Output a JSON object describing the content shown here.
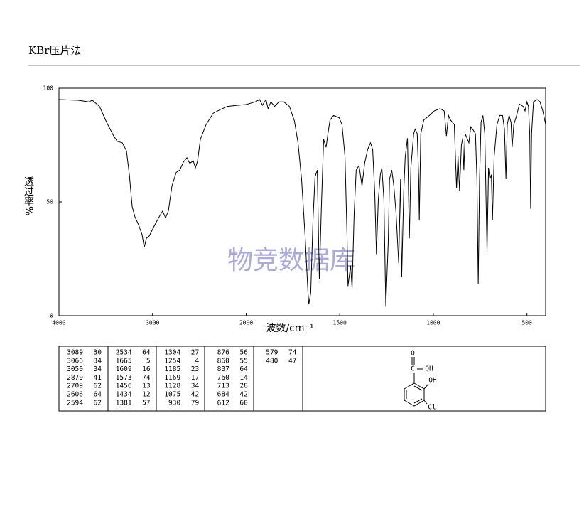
{
  "header": {
    "title": "KBr压片法"
  },
  "chart_data": {
    "type": "line",
    "x_label": "波数/cm⁻¹",
    "y_label": "透过率%",
    "color": "#000000",
    "xlim": [
      4000,
      400
    ],
    "xticks": [
      4000,
      3000,
      2000,
      1500,
      1000,
      500
    ],
    "x_scale_change": 2000,
    "ylim": [
      0,
      100
    ],
    "yticks": [
      0,
      50,
      100
    ],
    "grid": false,
    "x": [
      4000,
      3795,
      3681,
      3643,
      3567,
      3491,
      3415,
      3377,
      3324,
      3279,
      3248,
      3218,
      3188,
      3150,
      3112,
      3089,
      3066,
      3036,
      2975,
      2922,
      2892,
      2861,
      2831,
      2793,
      2747,
      2709,
      2671,
      2633,
      2603,
      2565,
      2542,
      2519,
      2489,
      2428,
      2352,
      2276,
      2200,
      2086,
      2000,
      1951,
      1928,
      1913,
      1894,
      1883,
      1868,
      1848,
      1825,
      1799,
      1769,
      1742,
      1723,
      1704,
      1685,
      1670,
      1665,
      1655,
      1643,
      1632,
      1620,
      1609,
      1598,
      1586,
      1573,
      1563,
      1552,
      1533,
      1503,
      1488,
      1472,
      1461,
      1456,
      1442,
      1434,
      1423,
      1412,
      1397,
      1381,
      1367,
      1351,
      1336,
      1324,
      1313,
      1304,
      1294,
      1283,
      1275,
      1264,
      1254,
      1241,
      1234,
      1222,
      1211,
      1199,
      1185,
      1175,
      1169,
      1158,
      1150,
      1138,
      1128,
      1120,
      1105,
      1097,
      1086,
      1078,
      1075,
      1067,
      1051,
      1021,
      995,
      964,
      942,
      930,
      919,
      908,
      888,
      876,
      868,
      860,
      850,
      843,
      837,
      830,
      810,
      800,
      790,
      775,
      767,
      760,
      753,
      745,
      735,
      725,
      713,
      705,
      698,
      690,
      684,
      675,
      660,
      645,
      630,
      620,
      612,
      605,
      595,
      585,
      579,
      570,
      555,
      540,
      520,
      510,
      500,
      492,
      485,
      480,
      475,
      465,
      445,
      430,
      415,
      400
    ],
    "values": [
      95,
      94.7,
      94,
      94.7,
      92,
      85,
      79,
      76.6,
      76,
      72.5,
      62,
      48,
      43.4,
      40,
      35.6,
      30,
      34,
      35,
      40,
      44,
      46,
      43,
      46,
      57,
      63,
      64,
      67.5,
      69.4,
      67,
      68,
      65,
      68,
      77.5,
      84,
      89,
      90.6,
      92,
      92.5,
      92.8,
      94,
      95,
      92.5,
      95,
      91,
      94,
      92,
      94,
      94,
      92,
      85.6,
      76,
      60,
      35,
      10.6,
      5,
      10,
      42,
      61,
      64,
      16,
      48,
      77.5,
      74,
      80,
      86,
      88,
      87,
      84,
      70,
      35,
      13,
      22,
      12,
      45,
      64,
      66,
      57,
      67,
      73,
      76,
      73,
      54,
      27,
      51,
      62,
      65,
      51,
      4,
      32,
      60,
      64,
      57,
      45,
      23,
      60,
      17,
      55,
      70,
      78,
      34,
      65,
      80,
      82,
      80,
      60,
      42,
      80,
      86,
      88,
      90,
      91,
      90,
      79,
      88,
      86,
      84,
      56,
      70,
      55,
      75,
      78,
      64,
      80,
      76,
      83,
      82,
      80,
      60,
      14,
      60,
      85,
      88,
      80,
      28,
      65,
      60,
      62,
      42,
      70,
      84,
      88,
      88,
      82,
      60,
      84,
      88,
      85,
      74,
      84,
      88,
      93,
      92,
      90,
      94,
      92,
      80,
      47,
      80,
      94,
      95,
      94,
      90,
      84
    ]
  },
  "watermark": "物竞数据库",
  "peak_table": {
    "columns": [
      [
        [
          3089,
          30
        ],
        [
          3066,
          34
        ],
        [
          3050,
          34
        ],
        [
          2879,
          41
        ],
        [
          2709,
          62
        ],
        [
          2606,
          64
        ],
        [
          2594,
          62
        ]
      ],
      [
        [
          2534,
          64
        ],
        [
          1665,
          5
        ],
        [
          1609,
          16
        ],
        [
          1573,
          74
        ],
        [
          1456,
          13
        ],
        [
          1434,
          12
        ],
        [
          1381,
          57
        ]
      ],
      [
        [
          1304,
          27
        ],
        [
          1254,
          4
        ],
        [
          1185,
          23
        ],
        [
          1169,
          17
        ],
        [
          1128,
          34
        ],
        [
          1075,
          42
        ],
        [
          930,
          79
        ]
      ],
      [
        [
          876,
          56
        ],
        [
          860,
          55
        ],
        [
          837,
          64
        ],
        [
          760,
          14
        ],
        [
          713,
          28
        ],
        [
          684,
          42
        ],
        [
          612,
          60
        ]
      ],
      [
        [
          579,
          74
        ],
        [
          480,
          47
        ]
      ]
    ]
  },
  "structure": {
    "labels": [
      "O",
      "C",
      "OH",
      "OH",
      "Cl"
    ]
  }
}
